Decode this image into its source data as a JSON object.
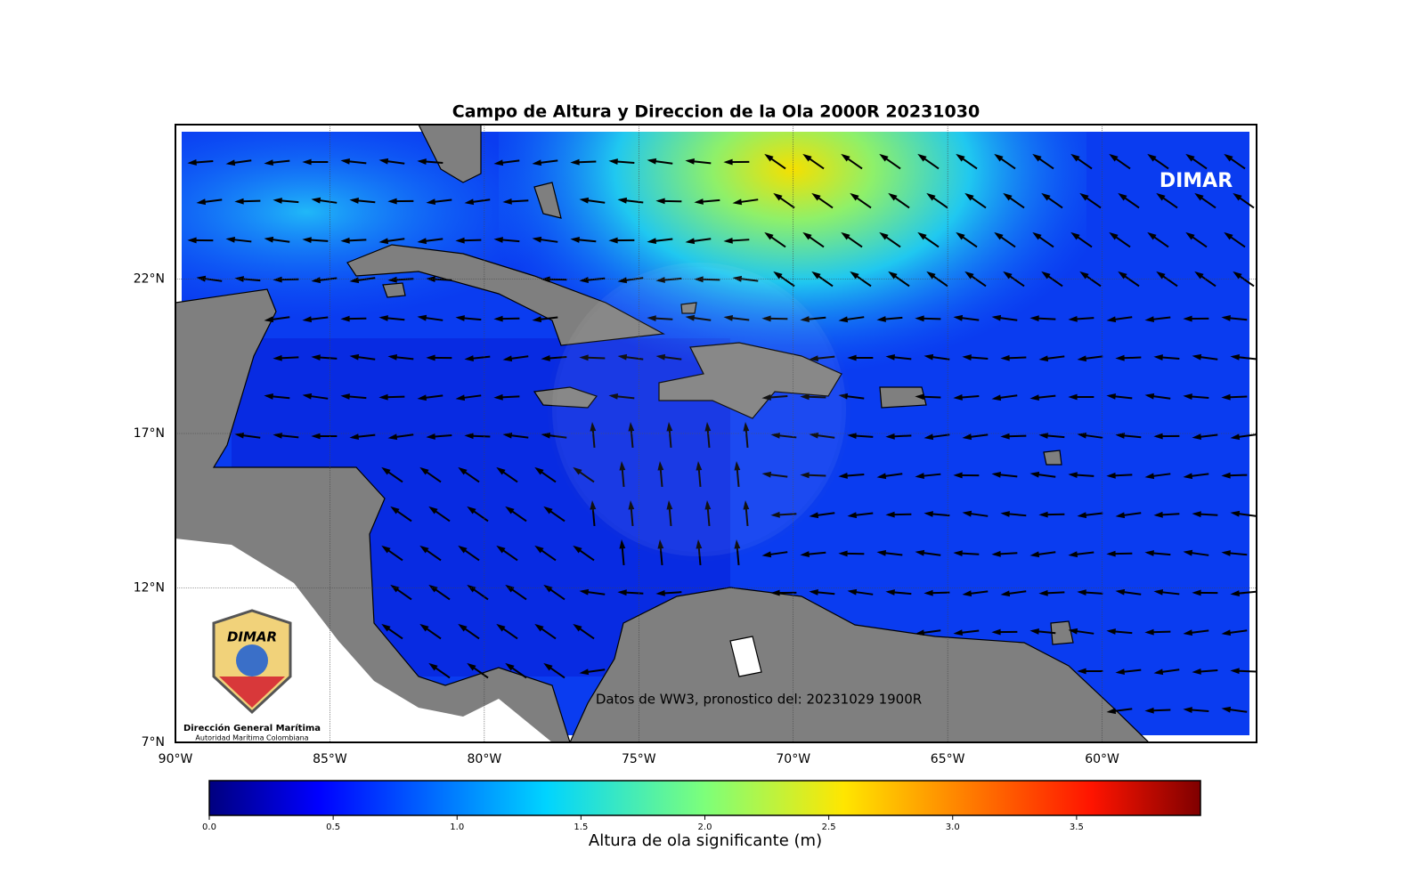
{
  "chart_data": {
    "type": "map",
    "title": "Campo de Altura y Direccion de la Ola 2000R 20231030",
    "xlim": [
      -90,
      -55
    ],
    "ylim": [
      7,
      27
    ],
    "xticks": [
      {
        "value": -90,
        "label": "90°W"
      },
      {
        "value": -85,
        "label": "85°W"
      },
      {
        "value": -80,
        "label": "80°W"
      },
      {
        "value": -75,
        "label": "75°W"
      },
      {
        "value": -70,
        "label": "70°W"
      },
      {
        "value": -65,
        "label": "65°W"
      },
      {
        "value": -60,
        "label": "60°W"
      }
    ],
    "yticks": [
      {
        "value": 7,
        "label": "7°N"
      },
      {
        "value": 12,
        "label": "12°N"
      },
      {
        "value": 17,
        "label": "17°N"
      },
      {
        "value": 22,
        "label": "22°N"
      }
    ],
    "grid": true,
    "brand": "DIMAR",
    "source_note": "Datos de WW3, pronostico del: 20231029 1900R",
    "colorbar": {
      "label": "Altura de ola significante (m)",
      "lim": [
        0,
        4
      ],
      "ticks": [
        {
          "value": 0,
          "label": "0.0"
        },
        0.5,
        {
          "value": 1,
          "label": "1.0"
        },
        1.5,
        {
          "value": 2,
          "label": "2.0"
        },
        2.5,
        {
          "value": 3,
          "label": "3.0"
        },
        3.5
      ]
    },
    "logo": {
      "mark": "DIMAR",
      "name": "Dirección General Marítima",
      "subtitle": "Autoridad Marítima Colombiana"
    }
  }
}
